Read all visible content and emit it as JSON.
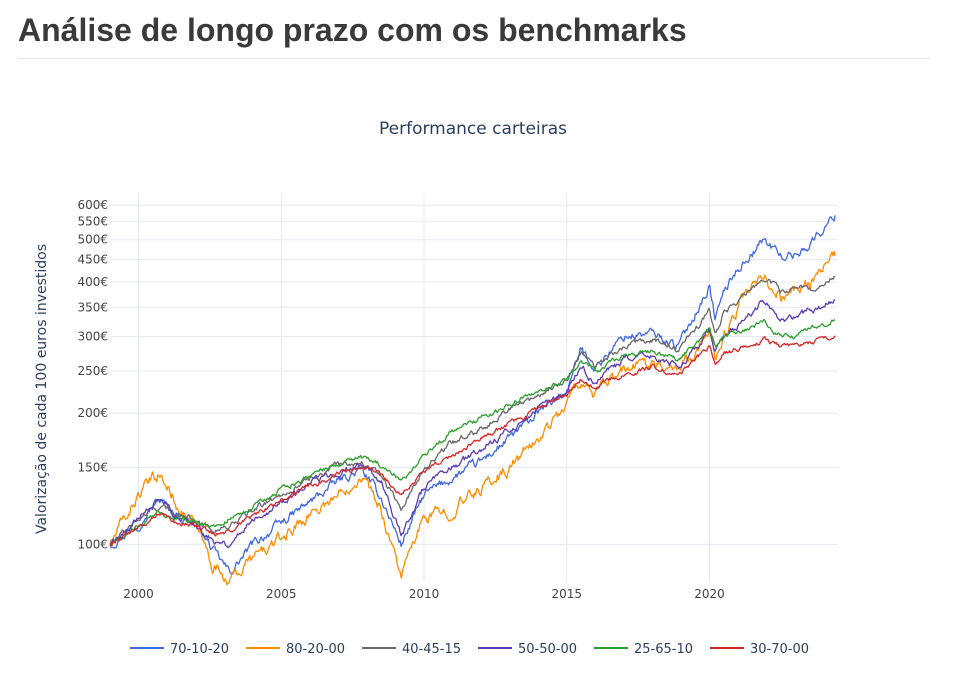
{
  "page": {
    "title": "Análise de longo prazo com os benchmarks"
  },
  "chart_data": {
    "type": "line",
    "title": "Performance carteiras",
    "xlabel": "",
    "ylabel": "Valorização de cada 100 euros investidos",
    "yscale": "log",
    "xlim": [
      1999.0,
      2024.5
    ],
    "ylim": [
      82,
      640
    ],
    "x_ticks": [
      2000,
      2005,
      2010,
      2015,
      2020
    ],
    "x_tick_labels": [
      "2000",
      "2005",
      "2010",
      "2015",
      "2020"
    ],
    "y_ticks": [
      100,
      150,
      200,
      250,
      300,
      350,
      400,
      450,
      500,
      550,
      600
    ],
    "y_tick_labels": [
      "100€",
      "150€",
      "200€",
      "250€",
      "300€",
      "350€",
      "400€",
      "450€",
      "500€",
      "550€",
      "600€"
    ],
    "grid": true,
    "legend_position": "bottom",
    "x": [
      1999.0,
      2000.0,
      2000.7,
      2001.5,
      2002.0,
      2002.6,
      2003.2,
      2004.0,
      2005.0,
      2006.0,
      2007.0,
      2007.8,
      2008.5,
      2009.2,
      2010.0,
      2011.0,
      2012.0,
      2013.0,
      2014.0,
      2015.0,
      2015.5,
      2016.0,
      2017.0,
      2018.0,
      2018.9,
      2019.5,
      2020.0,
      2020.2,
      2020.5,
      2021.0,
      2021.9,
      2022.5,
      2023.0,
      2023.5,
      2024.0,
      2024.4
    ],
    "series": [
      {
        "name": "70-10-20",
        "color": "#4169e1",
        "values": [
          100,
          112,
          127,
          115,
          113,
          97,
          86,
          100,
          112,
          125,
          140,
          148,
          128,
          100,
          130,
          142,
          155,
          175,
          200,
          225,
          280,
          255,
          300,
          305,
          285,
          340,
          390,
          330,
          380,
          430,
          500,
          460,
          460,
          490,
          530,
          570
        ]
      },
      {
        "name": "80-20-00",
        "color": "#ff8c00",
        "values": [
          100,
          130,
          145,
          120,
          110,
          90,
          83,
          93,
          103,
          118,
          130,
          145,
          120,
          85,
          115,
          120,
          135,
          150,
          175,
          210,
          240,
          220,
          250,
          265,
          255,
          280,
          305,
          270,
          300,
          350,
          410,
          370,
          380,
          400,
          430,
          460
        ]
      },
      {
        "name": "40-45-15",
        "color": "#696969",
        "values": [
          100,
          114,
          122,
          117,
          114,
          108,
          110,
          120,
          130,
          142,
          152,
          155,
          145,
          120,
          150,
          172,
          185,
          205,
          220,
          240,
          275,
          255,
          285,
          295,
          280,
          310,
          345,
          300,
          340,
          360,
          410,
          380,
          390,
          385,
          395,
          415
        ]
      },
      {
        "name": "50-50-00",
        "color": "#5b3cb4",
        "values": [
          100,
          115,
          125,
          115,
          110,
          103,
          100,
          115,
          125,
          138,
          148,
          152,
          140,
          105,
          135,
          150,
          165,
          183,
          205,
          225,
          255,
          235,
          265,
          270,
          255,
          280,
          310,
          280,
          300,
          320,
          360,
          330,
          330,
          345,
          350,
          370
        ]
      },
      {
        "name": "25-65-10",
        "color": "#2ca02c",
        "values": [
          100,
          110,
          118,
          115,
          113,
          110,
          114,
          122,
          133,
          145,
          153,
          158,
          152,
          140,
          160,
          182,
          195,
          210,
          225,
          240,
          262,
          250,
          270,
          277,
          265,
          290,
          310,
          285,
          300,
          305,
          325,
          300,
          300,
          315,
          320,
          330
        ]
      },
      {
        "name": "30-70-00",
        "color": "#d62728",
        "values": [
          100,
          110,
          118,
          112,
          110,
          106,
          107,
          116,
          126,
          136,
          145,
          150,
          145,
          130,
          148,
          160,
          175,
          190,
          205,
          220,
          240,
          230,
          245,
          255,
          245,
          265,
          285,
          260,
          275,
          280,
          295,
          285,
          285,
          290,
          295,
          305
        ]
      }
    ]
  }
}
